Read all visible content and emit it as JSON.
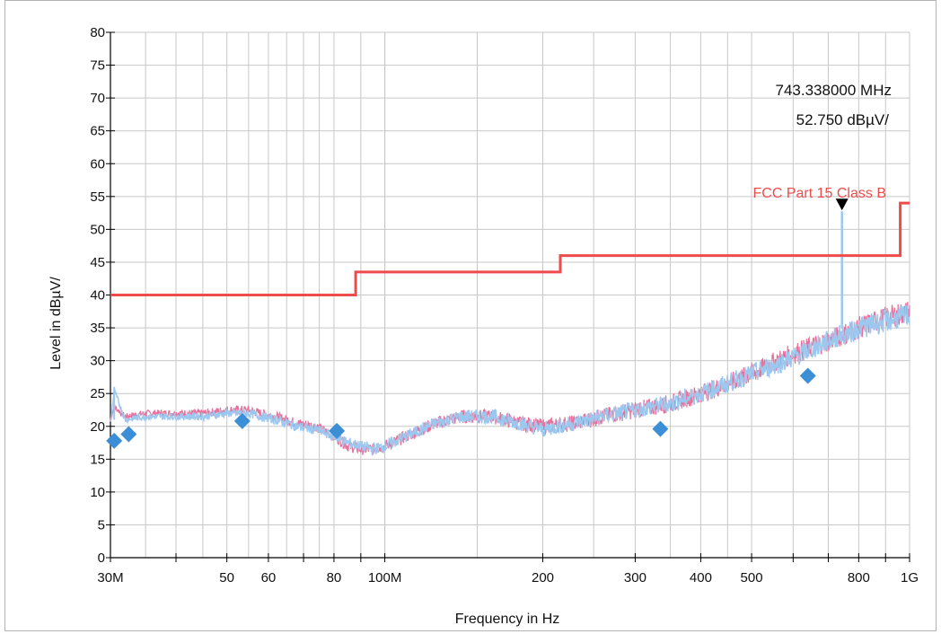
{
  "colors": {
    "limit": "#ee4b4b",
    "trace_peak": "#e8709a",
    "trace_qp": "#9cc8f0",
    "marker": "#3b8fd6",
    "grid": "#c8c8c8",
    "axis": "#000000"
  },
  "chart_data": {
    "type": "line",
    "title": "",
    "xlabel": "Frequency in Hz",
    "ylabel": "Level in dBµV/",
    "x_scale": "log",
    "xlim": [
      30000000,
      1000000000
    ],
    "ylim": [
      0,
      80
    ],
    "grid": true,
    "y_ticks": [
      0,
      5,
      10,
      15,
      20,
      25,
      30,
      35,
      40,
      45,
      50,
      55,
      60,
      65,
      70,
      75,
      80
    ],
    "y_tick_labels": [
      "0",
      "5",
      "10",
      "15",
      "20",
      "25",
      "30",
      "35",
      "40",
      "45",
      "50",
      "55",
      "60",
      "65",
      "70",
      "75",
      "80"
    ],
    "x_labeled_ticks": [
      {
        "value": 30000000,
        "label": "30M"
      },
      {
        "value": 50000000,
        "label": "50"
      },
      {
        "value": 60000000,
        "label": "60"
      },
      {
        "value": 80000000,
        "label": "80"
      },
      {
        "value": 100000000,
        "label": "100M"
      },
      {
        "value": 200000000,
        "label": "200"
      },
      {
        "value": 300000000,
        "label": "300"
      },
      {
        "value": 400000000,
        "label": "400"
      },
      {
        "value": 500000000,
        "label": "500"
      },
      {
        "value": 800000000,
        "label": "800"
      },
      {
        "value": 1000000000,
        "label": "1G"
      }
    ],
    "x_minor_ticks": [
      40000000,
      70000000,
      90000000,
      600000000,
      700000000,
      900000000
    ],
    "limit_line": {
      "name": "FCC Part 15 Class B",
      "steps": [
        {
          "x_start": 30000000,
          "x_end": 88000000,
          "level": 40.0
        },
        {
          "x_start": 88000000,
          "x_end": 216000000,
          "level": 43.5
        },
        {
          "x_start": 216000000,
          "x_end": 960000000,
          "level": 46.0
        },
        {
          "x_start": 960000000,
          "x_end": 1000000000,
          "level": 54.0
        }
      ]
    },
    "series": [
      {
        "role": "peak",
        "x": [
          30000000,
          30500000,
          32000000,
          35000000,
          40000000,
          45000000,
          50000000,
          55000000,
          58000000,
          62000000,
          68000000,
          74000000,
          80000000,
          85000000,
          90000000,
          95000000,
          100000000,
          110000000,
          125000000,
          140000000,
          160000000,
          180000000,
          200000000,
          230000000,
          260000000,
          300000000,
          350000000,
          400000000,
          450000000,
          500000000,
          560000000,
          620000000,
          700000000,
          800000000,
          900000000,
          1000000000
        ],
        "y": [
          21.0,
          23.0,
          21.5,
          22.0,
          22.0,
          22.0,
          22.5,
          22.5,
          22.0,
          21.5,
          20.5,
          20.0,
          18.5,
          17.0,
          16.5,
          16.5,
          17.0,
          18.5,
          20.5,
          21.5,
          21.5,
          20.5,
          20.0,
          20.5,
          21.5,
          22.5,
          23.5,
          25.0,
          26.5,
          28.0,
          30.0,
          31.5,
          33.0,
          35.0,
          36.5,
          37.5
        ]
      },
      {
        "role": "quasi-peak-sweep",
        "x": [
          30000000,
          30500000,
          32000000,
          35000000,
          40000000,
          45000000,
          50000000,
          55000000,
          58000000,
          62000000,
          68000000,
          74000000,
          80000000,
          85000000,
          90000000,
          95000000,
          100000000,
          110000000,
          125000000,
          140000000,
          160000000,
          180000000,
          200000000,
          230000000,
          260000000,
          300000000,
          350000000,
          400000000,
          450000000,
          500000000,
          560000000,
          620000000,
          700000000,
          743338000,
          743338000,
          743338000,
          760000000,
          800000000,
          900000000,
          1000000000
        ],
        "y": [
          20.5,
          25.5,
          21.0,
          21.5,
          21.5,
          21.5,
          22.0,
          22.0,
          21.5,
          21.0,
          20.0,
          19.5,
          18.5,
          17.5,
          17.0,
          16.5,
          17.0,
          18.5,
          20.5,
          21.5,
          21.5,
          20.5,
          19.5,
          20.5,
          21.5,
          22.5,
          23.5,
          25.0,
          26.5,
          28.0,
          29.5,
          31.0,
          33.0,
          34.0,
          52.75,
          34.0,
          34.0,
          35.0,
          36.0,
          37.0
        ]
      }
    ],
    "markers": [
      {
        "x": 30500000,
        "y": 17.8
      },
      {
        "x": 32500000,
        "y": 18.8
      },
      {
        "x": 53500000,
        "y": 20.8
      },
      {
        "x": 81000000,
        "y": 19.3
      },
      {
        "x": 335000000,
        "y": 19.6
      },
      {
        "x": 640000000,
        "y": 27.7
      }
    ],
    "peak_marker": {
      "x": 743338000,
      "y": 52.75
    }
  },
  "annotation": {
    "frequency_text": "743.338000 MHz",
    "level_text": "52.750 dBµV/"
  }
}
